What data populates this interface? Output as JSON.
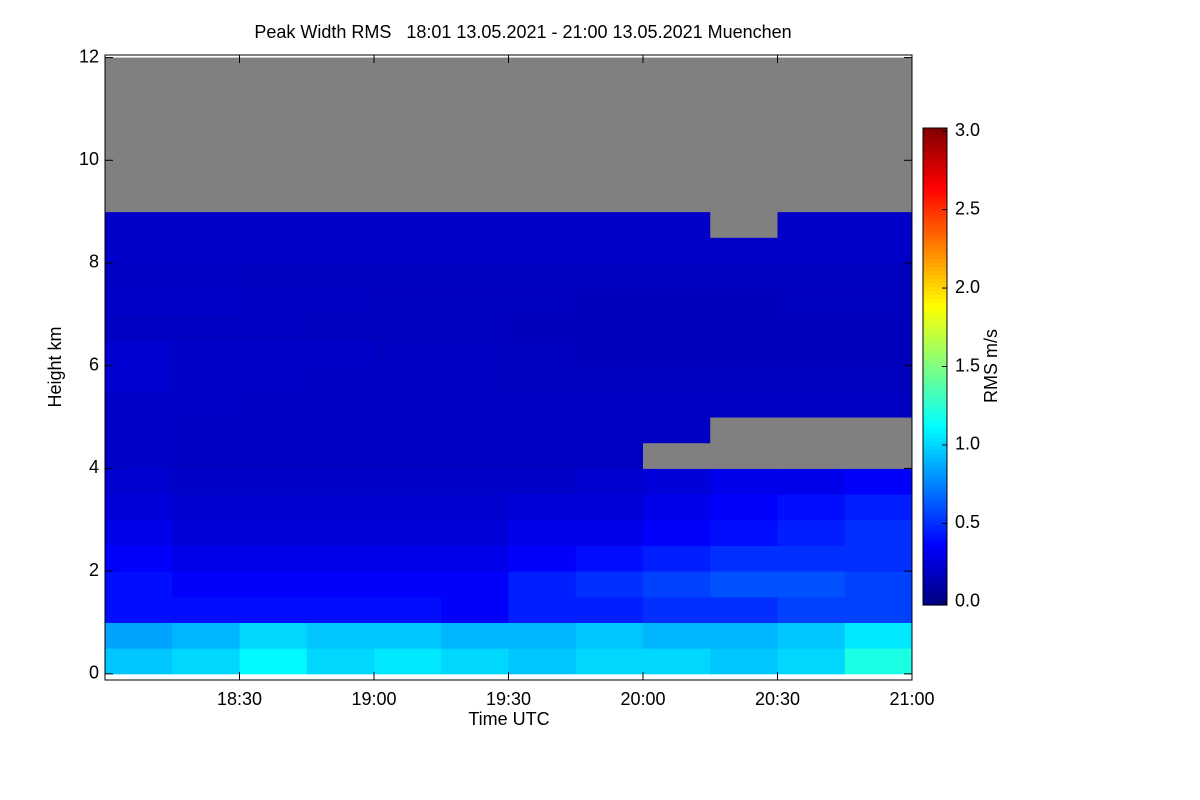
{
  "chart_data": {
    "type": "heatmap",
    "title": "Peak Width RMS   18:01 13.05.2021 - 21:00 13.05.2021 Muenchen",
    "xlabel": "Time UTC",
    "ylabel": "Height km",
    "colorbar_label": "RMS m/s",
    "colormap": "jet",
    "missing_color": "#808080",
    "xlim": [
      18.0,
      21.0
    ],
    "xticks": [
      {
        "value": 18.5,
        "label": "18:30"
      },
      {
        "value": 19.0,
        "label": "19:00"
      },
      {
        "value": 19.5,
        "label": "19:30"
      },
      {
        "value": 20.0,
        "label": "20:00"
      },
      {
        "value": 20.5,
        "label": "20:30"
      },
      {
        "value": 21.0,
        "label": "21:00"
      }
    ],
    "ylim": [
      -0.12,
      12.05
    ],
    "yticks": [
      0,
      2,
      4,
      6,
      8,
      10,
      12
    ],
    "clim": [
      -0.02,
      3.02
    ],
    "cticks": [
      {
        "value": 0,
        "label": "0.0"
      },
      0.5,
      {
        "value": 1,
        "label": "1.0"
      },
      1.5,
      {
        "value": 2,
        "label": "2.0"
      },
      2.5,
      {
        "value": 3,
        "label": "3.0"
      }
    ],
    "xbins": [
      18.0,
      18.25,
      18.5,
      18.75,
      19.0,
      19.25,
      19.5,
      19.75,
      20.0,
      20.25,
      20.5,
      20.75,
      21.0
    ],
    "ybins": [
      0,
      0.5,
      1,
      1.5,
      2,
      2.5,
      3,
      3.5,
      4,
      4.5,
      5,
      5.5,
      6,
      6.5,
      7,
      7.5,
      8,
      8.5,
      9,
      9.5,
      10,
      10.5,
      11,
      11.5,
      12
    ],
    "z": [
      [
        0.95,
        1.0,
        1.1,
        1.0,
        1.05,
        1.0,
        0.95,
        1.0,
        1.0,
        0.95,
        1.0,
        1.2
      ],
      [
        0.85,
        0.9,
        1.0,
        0.95,
        0.95,
        0.9,
        0.9,
        0.95,
        0.9,
        0.9,
        0.95,
        1.05
      ],
      [
        0.4,
        0.4,
        0.4,
        0.4,
        0.4,
        0.35,
        0.45,
        0.45,
        0.5,
        0.5,
        0.55,
        0.55
      ],
      [
        0.4,
        0.35,
        0.35,
        0.35,
        0.35,
        0.35,
        0.45,
        0.5,
        0.55,
        0.6,
        0.6,
        0.55
      ],
      [
        0.35,
        0.3,
        0.3,
        0.3,
        0.3,
        0.3,
        0.35,
        0.4,
        0.45,
        0.5,
        0.5,
        0.5
      ],
      [
        0.3,
        0.25,
        0.25,
        0.25,
        0.25,
        0.25,
        0.3,
        0.3,
        0.35,
        0.4,
        0.45,
        0.5
      ],
      [
        0.25,
        0.22,
        0.22,
        0.22,
        0.22,
        0.22,
        0.25,
        0.25,
        0.3,
        0.35,
        0.4,
        0.45
      ],
      [
        0.22,
        0.2,
        0.2,
        0.2,
        0.2,
        0.2,
        0.2,
        0.22,
        0.25,
        0.3,
        0.3,
        0.35
      ],
      [
        0.2,
        0.18,
        0.18,
        0.18,
        0.18,
        0.18,
        0.18,
        0.18,
        null,
        null,
        null,
        null
      ],
      [
        0.2,
        0.18,
        0.18,
        0.18,
        0.18,
        0.18,
        0.18,
        0.18,
        0.18,
        null,
        null,
        null
      ],
      [
        0.2,
        0.2,
        0.18,
        0.18,
        0.18,
        0.18,
        0.18,
        0.18,
        0.18,
        0.18,
        0.18,
        0.18
      ],
      [
        0.22,
        0.2,
        0.2,
        0.18,
        0.18,
        0.18,
        0.17,
        0.17,
        0.17,
        0.17,
        0.17,
        0.17
      ],
      [
        0.22,
        0.2,
        0.2,
        0.2,
        0.18,
        0.18,
        0.17,
        0.16,
        0.16,
        0.16,
        0.16,
        0.16
      ],
      [
        0.18,
        0.18,
        0.18,
        0.17,
        0.17,
        0.17,
        0.16,
        0.16,
        0.16,
        0.16,
        0.16,
        0.16
      ],
      [
        0.2,
        0.2,
        0.18,
        0.18,
        0.17,
        0.17,
        0.17,
        0.16,
        0.16,
        0.16,
        0.17,
        0.17
      ],
      [
        0.18,
        0.18,
        0.17,
        0.17,
        0.17,
        0.17,
        0.17,
        0.17,
        0.17,
        0.17,
        0.17,
        0.17
      ],
      [
        0.2,
        0.2,
        0.2,
        0.2,
        0.2,
        0.2,
        0.2,
        0.2,
        0.2,
        0.2,
        0.2,
        0.2
      ],
      [
        0.2,
        0.2,
        0.2,
        0.2,
        0.2,
        0.2,
        0.2,
        0.2,
        0.2,
        null,
        0.2,
        0.2
      ],
      [
        null,
        null,
        null,
        null,
        null,
        null,
        null,
        null,
        null,
        null,
        null,
        null
      ],
      [
        null,
        null,
        null,
        null,
        null,
        null,
        null,
        null,
        null,
        null,
        null,
        null
      ],
      [
        null,
        null,
        null,
        null,
        null,
        null,
        null,
        null,
        null,
        null,
        null,
        null
      ],
      [
        null,
        null,
        null,
        null,
        null,
        null,
        null,
        null,
        null,
        null,
        null,
        null
      ],
      [
        null,
        null,
        null,
        null,
        null,
        null,
        null,
        null,
        null,
        null,
        null,
        null
      ],
      [
        null,
        null,
        null,
        null,
        null,
        null,
        null,
        null,
        null,
        null,
        null,
        null
      ]
    ]
  }
}
